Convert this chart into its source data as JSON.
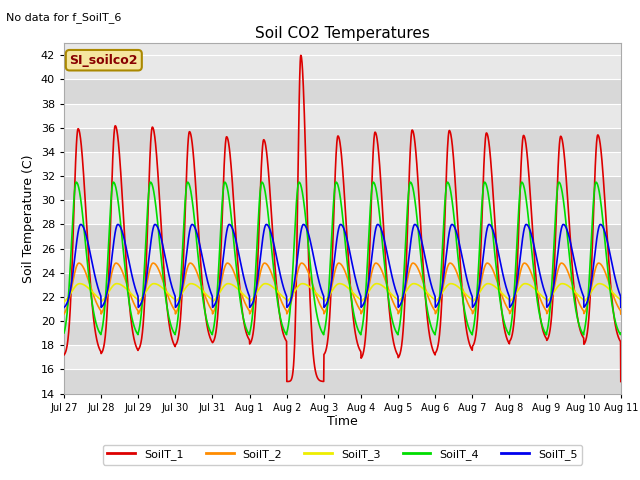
{
  "title": "Soil CO2 Temperatures",
  "subtitle": "No data for f_SoilT_6",
  "xlabel": "Time",
  "ylabel": "Soil Temperature (C)",
  "ylim": [
    14,
    43
  ],
  "yticks": [
    14,
    16,
    18,
    20,
    22,
    24,
    26,
    28,
    30,
    32,
    34,
    36,
    38,
    40,
    42
  ],
  "legend_label": "SI_soilco2",
  "legend_entries": [
    "SoilT_1",
    "SoilT_2",
    "SoilT_3",
    "SoilT_4",
    "SoilT_5"
  ],
  "line_colors": [
    "#dd0000",
    "#ff8c00",
    "#eeee00",
    "#00dd00",
    "#0000ee"
  ],
  "bg_color": "#ffffff",
  "plot_bg_color": "#e8e8e8",
  "tick_labels": [
    "Jul 27",
    "Jul 28",
    "Jul 29",
    "Jul 30",
    "Jul 31",
    "Aug 1",
    "Aug 2",
    "Aug 3",
    "Aug 4",
    "Aug 5",
    "Aug 6",
    "Aug 7",
    "Aug 8",
    "Aug 9",
    "Aug 10",
    "Aug 11"
  ],
  "num_days": 16
}
